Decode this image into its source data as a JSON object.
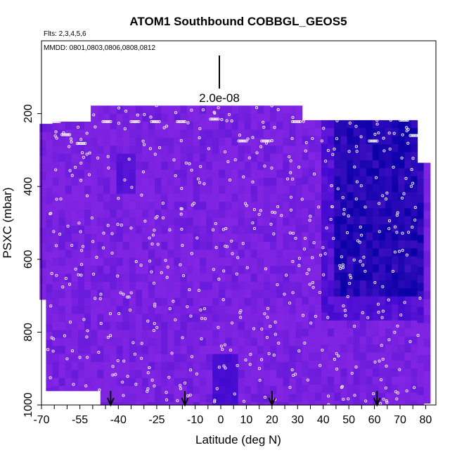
{
  "chart_data": {
    "type": "heatmap",
    "title": "ATOM1 Southbound COBBGL_GEOS5",
    "subtitle_flights": "Flts: 2,3,4,5,6",
    "subtitle_dates": "MMDD: 0801,0803,0806,0808,0812",
    "xlabel": "Latitude (deg N)",
    "ylabel": "PSXC (mbar)",
    "xlim": [
      -70,
      84
    ],
    "ylim": [
      1000,
      0
    ],
    "x_ticks": [
      "-70",
      "-55",
      "-40",
      "-25",
      "-10",
      "0",
      "10",
      "20",
      "30",
      "40",
      "50",
      "60",
      "70",
      "80"
    ],
    "x_tick_values": [
      -70,
      -55,
      -40,
      -25,
      -10,
      0,
      10,
      20,
      30,
      40,
      50,
      60,
      70,
      80
    ],
    "y_ticks": [
      "200",
      "400",
      "600",
      "800",
      "1000"
    ],
    "y_tick_values": [
      200,
      400,
      600,
      800,
      1000
    ],
    "scale_bar_label": "2.0e-08",
    "arrows_lat": [
      -43,
      -14,
      20,
      61
    ],
    "colors": {
      "base": "#7b22e0",
      "dark": "#2a00c8",
      "deep": "#0a00a8",
      "bright": "#9a30f0",
      "points": "#ffffff"
    }
  }
}
